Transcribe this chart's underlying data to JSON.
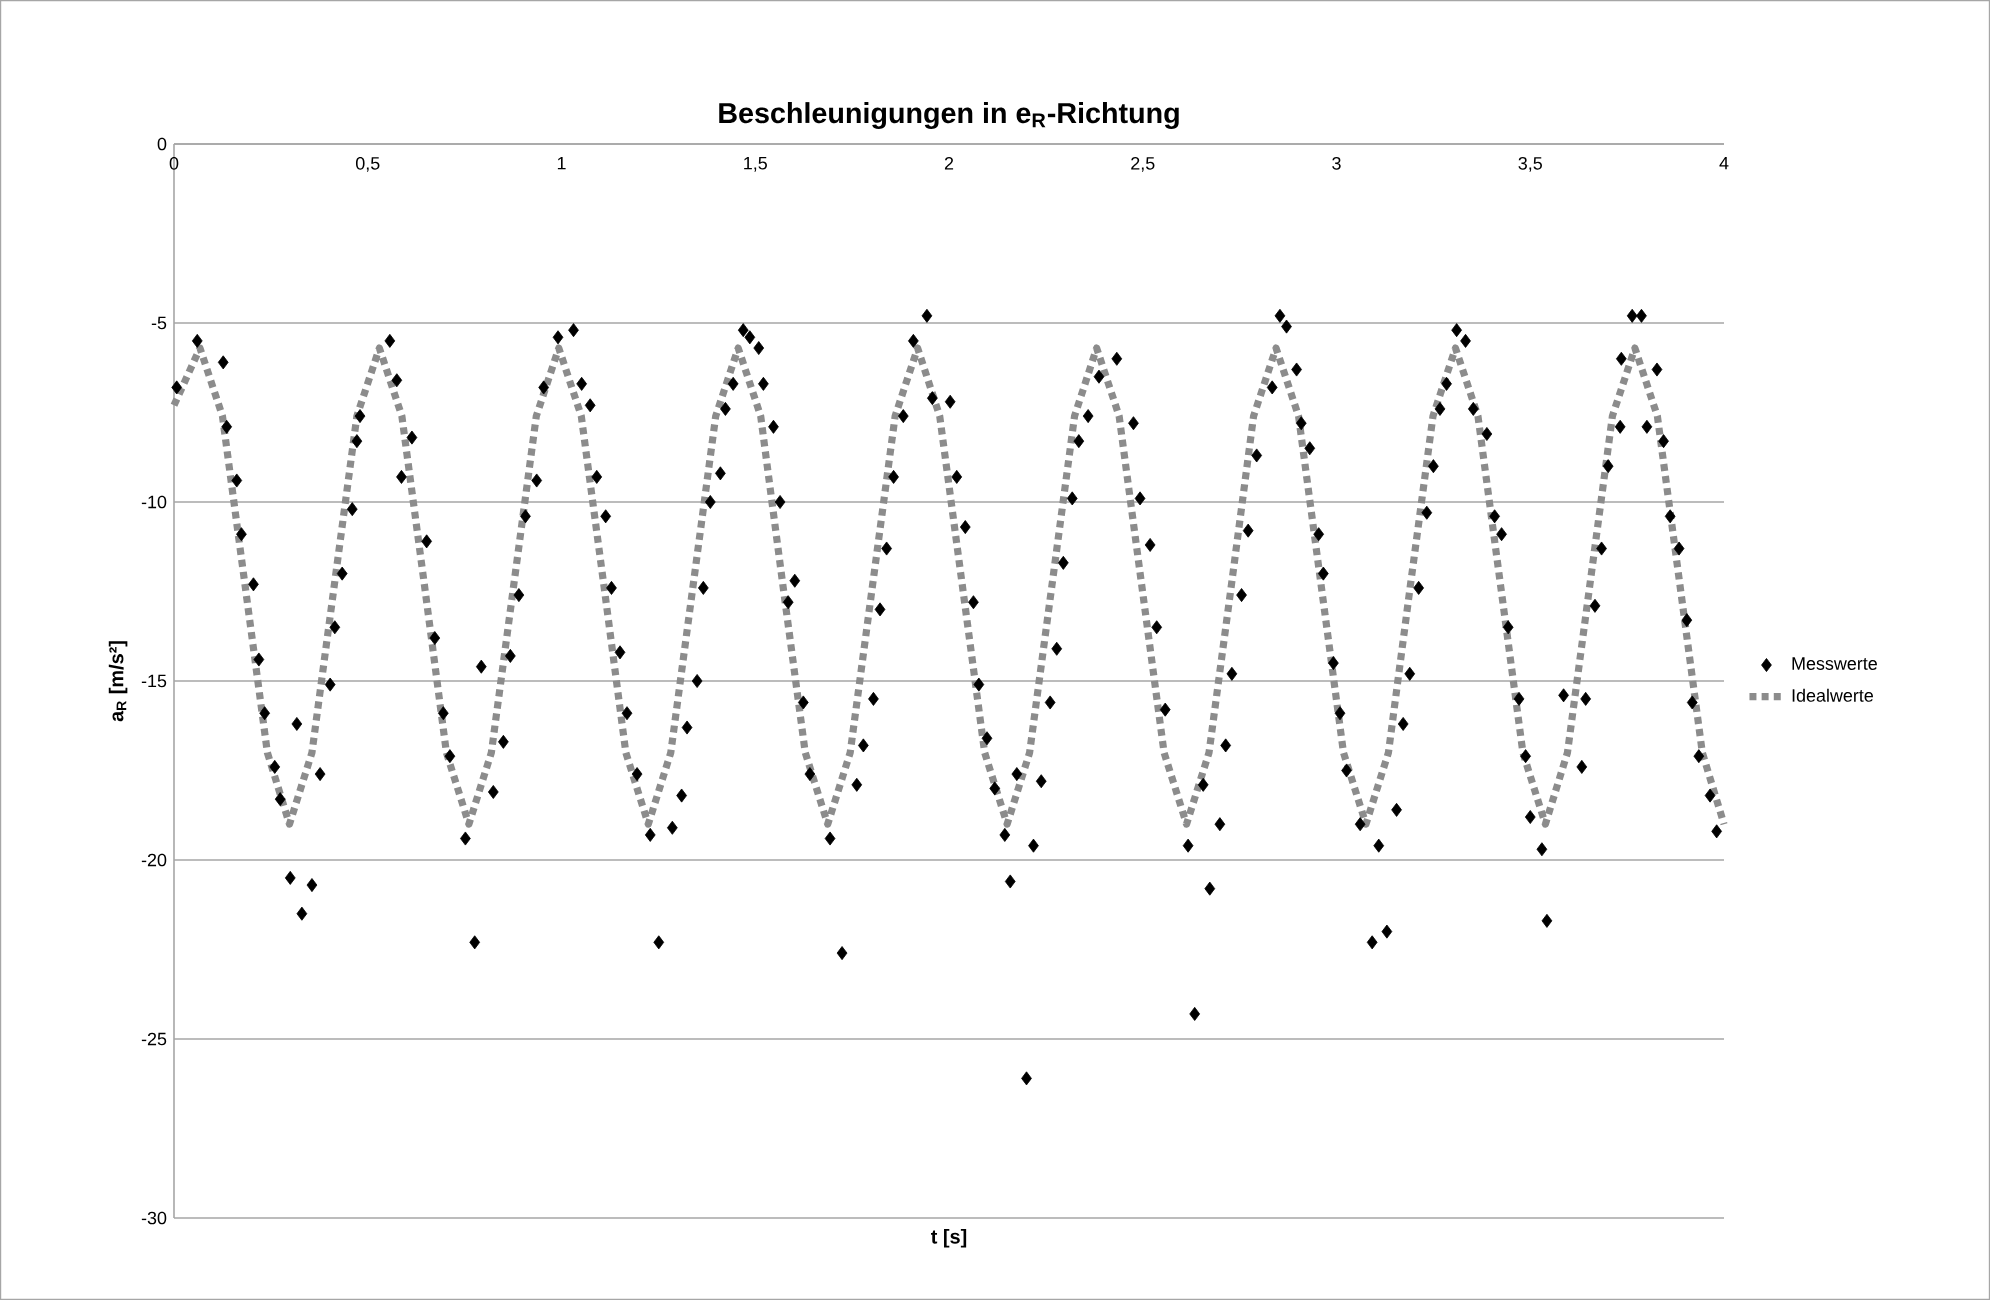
{
  "chart_data": {
    "type": "scatter",
    "title": "Beschleunigungen in e$_{R}$-Richtung",
    "xlabel": "t [s]",
    "ylabel": "a$_{R}$ [m/s²]",
    "xlim": [
      0,
      4
    ],
    "ylim": [
      -30,
      0
    ],
    "xticks": [
      0,
      {
        "value": 0.5,
        "label": "0,5"
      },
      1,
      {
        "value": 1.5,
        "label": "1,5"
      },
      2,
      {
        "value": 2.5,
        "label": "2,5"
      },
      3,
      {
        "value": 3.5,
        "label": "3,5"
      },
      4
    ],
    "yticks": [
      -30,
      -25,
      -20,
      -15,
      -10,
      -5,
      0
    ],
    "grid": "y",
    "legend": "right",
    "series": [
      {
        "name": "Messwerte",
        "marker": "diamond",
        "color": "#000000",
        "x": [
          0.007,
          0.06,
          0.127,
          0.136,
          0.162,
          0.174,
          0.205,
          0.219,
          0.234,
          0.26,
          0.274,
          0.3,
          0.317,
          0.33,
          0.356,
          0.377,
          0.403,
          0.415,
          0.434,
          0.46,
          0.472,
          0.48,
          0.557,
          0.575,
          0.587,
          0.614,
          0.652,
          0.673,
          0.695,
          0.712,
          0.752,
          0.776,
          0.793,
          0.824,
          0.85,
          0.868,
          0.89,
          0.907,
          0.936,
          0.954,
          0.991,
          1.031,
          1.052,
          1.074,
          1.091,
          1.114,
          1.129,
          1.151,
          1.169,
          1.195,
          1.229,
          1.251,
          1.286,
          1.31,
          1.324,
          1.35,
          1.366,
          1.384,
          1.41,
          1.423,
          1.443,
          1.469,
          1.486,
          1.509,
          1.521,
          1.547,
          1.564,
          1.585,
          1.602,
          1.624,
          1.641,
          1.693,
          1.724,
          1.762,
          1.779,
          1.805,
          1.822,
          1.839,
          1.857,
          1.882,
          1.908,
          1.943,
          1.957,
          2.003,
          2.02,
          2.042,
          2.063,
          2.077,
          2.098,
          2.118,
          2.144,
          2.158,
          2.175,
          2.2,
          2.218,
          2.238,
          2.261,
          2.278,
          2.295,
          2.318,
          2.335,
          2.359,
          2.387,
          2.433,
          2.476,
          2.493,
          2.519,
          2.536,
          2.558,
          2.617,
          2.634,
          2.656,
          2.673,
          2.699,
          2.714,
          2.73,
          2.755,
          2.772,
          2.794,
          2.834,
          2.854,
          2.871,
          2.897,
          2.909,
          2.931,
          2.954,
          2.966,
          2.992,
          3.009,
          3.026,
          3.061,
          3.092,
          3.109,
          3.13,
          3.155,
          3.172,
          3.189,
          3.212,
          3.233,
          3.25,
          3.267,
          3.284,
          3.31,
          3.333,
          3.353,
          3.388,
          3.408,
          3.426,
          3.443,
          3.471,
          3.488,
          3.5,
          3.53,
          3.543,
          3.586,
          3.633,
          3.643,
          3.667,
          3.684,
          3.701,
          3.732,
          3.735,
          3.763,
          3.787,
          3.801,
          3.827,
          3.844,
          3.861,
          3.884,
          3.904,
          3.918,
          3.935,
          3.964,
          3.981
        ],
        "values": [
          -6.8,
          -5.5,
          -6.1,
          -7.9,
          -9.4,
          -10.9,
          -12.3,
          -14.4,
          -15.9,
          -17.4,
          -18.3,
          -20.5,
          -16.2,
          -21.5,
          -20.7,
          -17.6,
          -15.1,
          -13.5,
          -12.0,
          -10.2,
          -8.3,
          -7.6,
          -5.5,
          -6.6,
          -9.3,
          -8.2,
          -11.1,
          -13.8,
          -15.9,
          -17.1,
          -19.4,
          -22.3,
          -14.6,
          -18.1,
          -16.7,
          -14.3,
          -12.6,
          -10.4,
          -9.4,
          -6.8,
          -5.4,
          -5.2,
          -6.7,
          -7.3,
          -9.3,
          -10.4,
          -12.4,
          -14.2,
          -15.9,
          -17.6,
          -19.3,
          -22.3,
          -19.1,
          -18.2,
          -16.3,
          -15.0,
          -12.4,
          -10.0,
          -9.2,
          -7.4,
          -6.7,
          -5.2,
          -5.4,
          -5.7,
          -6.7,
          -7.9,
          -10.0,
          -12.8,
          -12.2,
          -15.6,
          -17.6,
          -19.4,
          -22.6,
          -17.9,
          -16.8,
          -15.5,
          -13.0,
          -11.3,
          -9.3,
          -7.6,
          -5.5,
          -4.8,
          -7.1,
          -7.2,
          -9.3,
          -10.7,
          -12.8,
          -15.1,
          -16.6,
          -18.0,
          -19.3,
          -20.6,
          -17.6,
          -26.1,
          -19.6,
          -17.8,
          -15.6,
          -14.1,
          -11.7,
          -9.9,
          -8.3,
          -7.6,
          -6.5,
          -6.0,
          -7.8,
          -9.9,
          -11.2,
          -13.5,
          -15.8,
          -19.6,
          -24.3,
          -17.9,
          -20.8,
          -19.0,
          -16.8,
          -14.8,
          -12.6,
          -10.8,
          -8.7,
          -6.8,
          -4.8,
          -5.1,
          -6.3,
          -7.8,
          -8.5,
          -10.9,
          -12.0,
          -14.5,
          -15.9,
          -17.5,
          -19.0,
          -22.3,
          -19.6,
          -22.0,
          -18.6,
          -16.2,
          -14.8,
          -12.4,
          -10.3,
          -9.0,
          -7.4,
          -6.7,
          -5.2,
          -5.5,
          -7.4,
          -8.1,
          -10.4,
          -10.9,
          -13.5,
          -15.5,
          -17.1,
          -18.8,
          -19.7,
          -21.7,
          -15.4,
          -17.4,
          -15.5,
          -12.9,
          -11.3,
          -9.0,
          -7.9,
          -6.0,
          -4.8,
          -4.8,
          -7.9,
          -6.3,
          -8.3,
          -10.4,
          -11.3,
          -13.3,
          -15.6,
          -17.1,
          -18.2,
          -19.2
        ]
      },
      {
        "name": "Idealwerte",
        "type": "line",
        "marker": "none",
        "line_style": "dotted",
        "color": "#8c8c8c",
        "x": [
          0,
          0.067,
          0.125,
          0.183,
          0.241,
          0.298,
          0.356,
          0.414,
          0.472,
          0.53,
          0.588,
          0.646,
          0.703,
          0.761,
          0.819,
          0.877,
          0.935,
          0.993,
          1.051,
          1.109,
          1.166,
          1.224,
          1.282,
          1.34,
          1.398,
          1.456,
          1.514,
          1.571,
          1.629,
          1.687,
          1.745,
          1.803,
          1.861,
          1.919,
          1.976,
          2.034,
          2.092,
          2.15,
          2.208,
          2.266,
          2.324,
          2.381,
          2.439,
          2.497,
          2.555,
          2.613,
          2.671,
          2.729,
          2.786,
          2.844,
          2.902,
          2.96,
          3.018,
          3.076,
          3.134,
          3.191,
          3.249,
          3.307,
          3.365,
          3.423,
          3.481,
          3.539,
          3.596,
          3.654,
          3.712,
          3.77,
          3.828,
          3.886,
          3.944,
          4.0
        ],
        "values": [
          -7.3,
          -5.7,
          -7.6,
          -12.3,
          -17.0,
          -19.0,
          -17.0,
          -12.3,
          -7.6,
          -5.7,
          -7.6,
          -12.3,
          -17.0,
          -19.0,
          -17.0,
          -12.3,
          -7.6,
          -5.7,
          -7.6,
          -12.3,
          -17.0,
          -19.0,
          -17.0,
          -12.3,
          -7.6,
          -5.7,
          -7.6,
          -12.3,
          -17.0,
          -19.0,
          -17.0,
          -12.3,
          -7.6,
          -5.7,
          -7.6,
          -12.3,
          -17.0,
          -19.0,
          -17.0,
          -12.3,
          -7.6,
          -5.7,
          -7.6,
          -12.3,
          -17.0,
          -19.0,
          -17.0,
          -12.3,
          -7.6,
          -5.7,
          -7.6,
          -12.3,
          -17.0,
          -19.0,
          -17.0,
          -12.3,
          -7.6,
          -5.7,
          -7.6,
          -12.3,
          -17.0,
          -19.0,
          -17.0,
          -12.3,
          -7.6,
          -5.7,
          -7.6,
          -12.3,
          -17.0,
          -19.0
        ]
      }
    ]
  }
}
